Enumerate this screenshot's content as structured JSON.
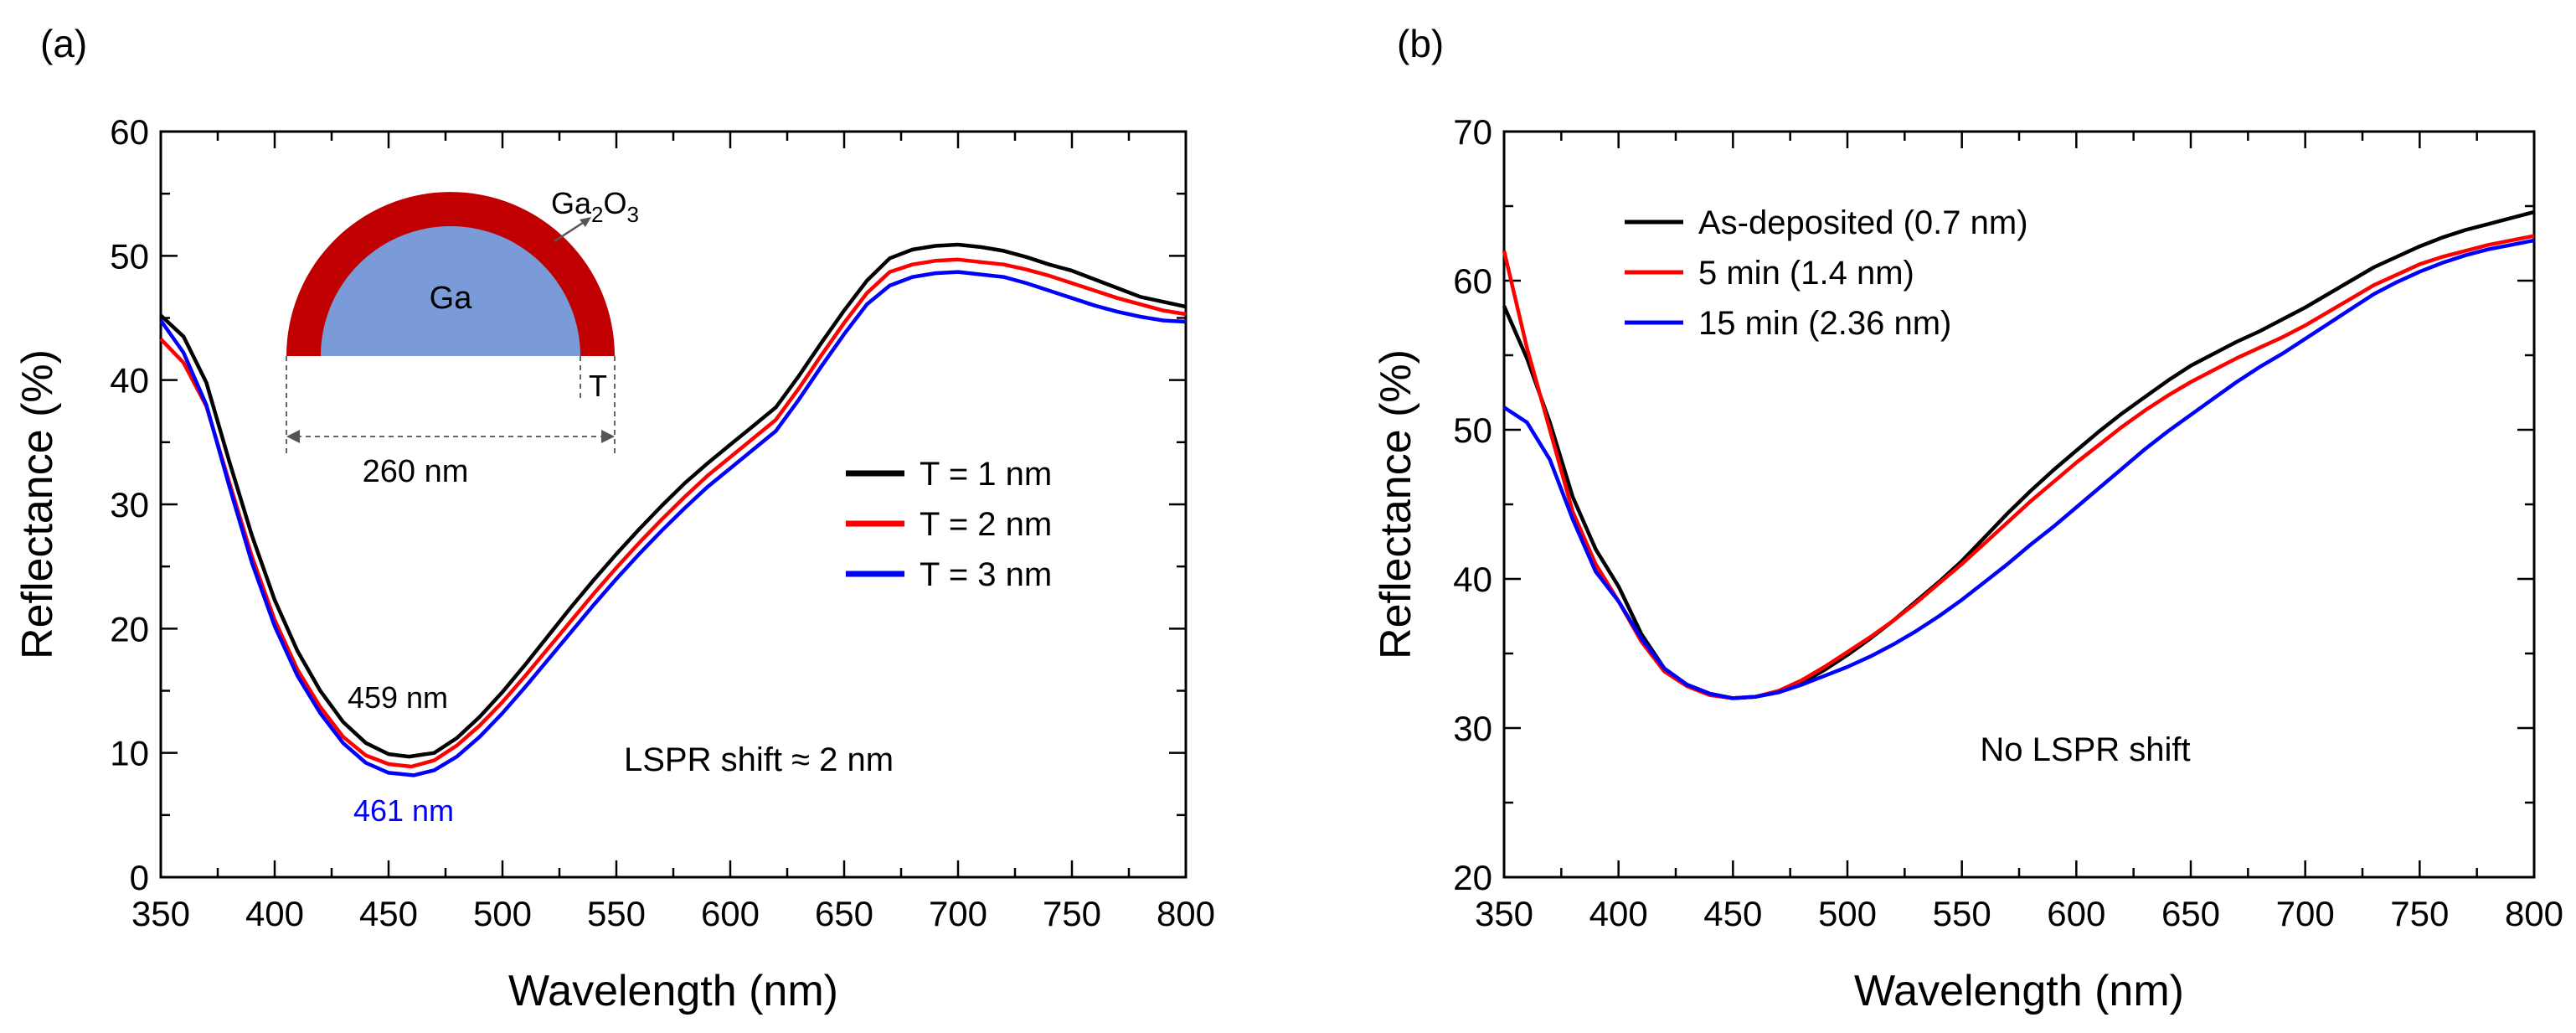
{
  "chart_data": [
    {
      "panel_label": "(a)",
      "type": "line",
      "xlabel": "Wavelength (nm)",
      "ylabel": "Reflectance (%)",
      "xlim": [
        350,
        800
      ],
      "ylim": [
        0,
        60
      ],
      "xticks": [
        "350",
        "400",
        "450",
        "500",
        "550",
        "600",
        "650",
        "700",
        "750",
        "800"
      ],
      "yticks": [
        "0",
        "10",
        "20",
        "30",
        "40",
        "50",
        "60"
      ],
      "legend_position": "center-right",
      "series": [
        {
          "name": "T = 1 nm",
          "color": "#000000",
          "x": [
            350,
            360,
            370,
            380,
            390,
            400,
            410,
            420,
            430,
            440,
            450,
            459,
            470,
            480,
            490,
            500,
            510,
            520,
            530,
            540,
            550,
            560,
            570,
            580,
            590,
            600,
            610,
            620,
            630,
            640,
            650,
            660,
            670,
            680,
            690,
            700,
            710,
            720,
            730,
            740,
            750,
            760,
            770,
            780,
            790,
            800
          ],
          "y": [
            45.2,
            43.5,
            39.8,
            33.5,
            27.5,
            22.3,
            18.2,
            15.0,
            12.5,
            10.8,
            9.9,
            9.7,
            10.0,
            11.2,
            12.9,
            14.9,
            17.1,
            19.4,
            21.7,
            23.9,
            26.0,
            28.0,
            29.9,
            31.7,
            33.3,
            34.8,
            36.3,
            37.8,
            40.3,
            43.0,
            45.6,
            48.0,
            49.8,
            50.5,
            50.8,
            50.9,
            50.7,
            50.4,
            49.9,
            49.3,
            48.8,
            48.1,
            47.4,
            46.7,
            46.3,
            45.9
          ]
        },
        {
          "name": "T = 2 nm",
          "color": "#ff0000",
          "x": [
            350,
            360,
            370,
            380,
            390,
            400,
            410,
            420,
            430,
            440,
            450,
            460,
            470,
            480,
            490,
            500,
            510,
            520,
            530,
            540,
            550,
            560,
            570,
            580,
            590,
            600,
            610,
            620,
            630,
            640,
            650,
            660,
            670,
            680,
            690,
            700,
            710,
            720,
            730,
            740,
            750,
            760,
            770,
            780,
            790,
            800
          ],
          "y": [
            43.3,
            41.4,
            37.9,
            31.8,
            25.8,
            20.7,
            16.7,
            13.7,
            11.3,
            9.8,
            9.1,
            8.9,
            9.4,
            10.6,
            12.2,
            14.1,
            16.2,
            18.4,
            20.6,
            22.8,
            24.9,
            26.9,
            28.8,
            30.6,
            32.3,
            33.8,
            35.3,
            36.8,
            39.3,
            42.0,
            44.6,
            47.0,
            48.7,
            49.3,
            49.6,
            49.7,
            49.5,
            49.3,
            48.9,
            48.4,
            47.8,
            47.2,
            46.6,
            46.1,
            45.6,
            45.3
          ]
        },
        {
          "name": "T = 3 nm",
          "color": "#0000ff",
          "x": [
            350,
            360,
            370,
            380,
            390,
            400,
            410,
            420,
            430,
            440,
            450,
            461,
            470,
            480,
            490,
            500,
            510,
            520,
            530,
            540,
            550,
            560,
            570,
            580,
            590,
            600,
            610,
            620,
            630,
            640,
            650,
            660,
            670,
            680,
            690,
            700,
            710,
            720,
            730,
            740,
            750,
            760,
            770,
            780,
            790,
            800
          ],
          "y": [
            44.8,
            42.2,
            38.0,
            31.5,
            25.3,
            20.2,
            16.2,
            13.2,
            10.8,
            9.2,
            8.4,
            8.2,
            8.6,
            9.7,
            11.3,
            13.2,
            15.3,
            17.5,
            19.7,
            21.9,
            24.0,
            26.0,
            27.9,
            29.7,
            31.4,
            32.9,
            34.4,
            35.9,
            38.4,
            41.1,
            43.7,
            46.1,
            47.6,
            48.3,
            48.6,
            48.7,
            48.5,
            48.3,
            47.8,
            47.2,
            46.6,
            46.0,
            45.5,
            45.1,
            44.8,
            44.7
          ]
        }
      ],
      "annotations": {
        "peak_black": "459 nm",
        "peak_blue": "461 nm",
        "shift_text": "LSPR shift ≈ 2 nm",
        "inset_shell_label": "Ga",
        "inset_shell_sub": "2",
        "inset_shell_label2": "O",
        "inset_shell_sub2": "3",
        "inset_core_label": "Ga",
        "inset_thickness_label": "T",
        "inset_diameter_label": "260 nm",
        "inset_shell_color": "#c00000",
        "inset_core_color": "#7a9bd8"
      }
    },
    {
      "panel_label": "(b)",
      "type": "line",
      "xlabel": "Wavelength (nm)",
      "ylabel": "Reflectance (%)",
      "xlim": [
        350,
        800
      ],
      "ylim": [
        20,
        70
      ],
      "xticks": [
        "350",
        "400",
        "450",
        "500",
        "550",
        "600",
        "650",
        "700",
        "750",
        "800"
      ],
      "yticks": [
        "20",
        "30",
        "40",
        "50",
        "60",
        "70"
      ],
      "legend_position": "top-left",
      "series": [
        {
          "name": "As-deposited (0.7 nm)",
          "color": "#000000",
          "x": [
            350,
            360,
            370,
            380,
            390,
            400,
            410,
            420,
            430,
            440,
            450,
            460,
            470,
            480,
            490,
            500,
            510,
            520,
            530,
            540,
            550,
            560,
            570,
            580,
            590,
            600,
            610,
            620,
            630,
            640,
            650,
            660,
            670,
            680,
            690,
            700,
            710,
            720,
            730,
            740,
            750,
            760,
            770,
            780,
            790,
            800
          ],
          "y": [
            58.3,
            54.8,
            50.5,
            45.5,
            42.0,
            39.5,
            36.3,
            34.0,
            32.9,
            32.3,
            32.0,
            32.1,
            32.4,
            33.0,
            33.9,
            34.9,
            36.0,
            37.2,
            38.5,
            39.8,
            41.2,
            42.8,
            44.4,
            45.9,
            47.3,
            48.6,
            49.9,
            51.1,
            52.2,
            53.3,
            54.3,
            55.1,
            55.9,
            56.6,
            57.4,
            58.2,
            59.1,
            60.0,
            60.9,
            61.6,
            62.3,
            62.9,
            63.4,
            63.8,
            64.2,
            64.6
          ]
        },
        {
          "name": "5 min (1.4 nm)",
          "color": "#ff0000",
          "x": [
            350,
            360,
            370,
            380,
            390,
            400,
            410,
            420,
            430,
            440,
            450,
            460,
            470,
            480,
            490,
            500,
            510,
            520,
            530,
            540,
            550,
            560,
            570,
            580,
            590,
            600,
            610,
            620,
            630,
            640,
            650,
            660,
            670,
            680,
            690,
            700,
            710,
            720,
            730,
            740,
            750,
            760,
            770,
            780,
            790,
            800
          ],
          "y": [
            62.0,
            55.5,
            50.0,
            44.5,
            41.0,
            38.5,
            35.8,
            33.8,
            32.8,
            32.2,
            32.0,
            32.1,
            32.5,
            33.2,
            34.1,
            35.1,
            36.1,
            37.2,
            38.4,
            39.7,
            41.0,
            42.4,
            43.8,
            45.2,
            46.5,
            47.8,
            49.0,
            50.2,
            51.3,
            52.3,
            53.2,
            54.0,
            54.8,
            55.5,
            56.2,
            57.0,
            57.9,
            58.8,
            59.7,
            60.4,
            61.1,
            61.6,
            62.0,
            62.4,
            62.7,
            63.0
          ]
        },
        {
          "name": "15 min (2.36 nm)",
          "color": "#0000ff",
          "x": [
            350,
            360,
            370,
            380,
            390,
            400,
            410,
            420,
            430,
            440,
            450,
            460,
            470,
            480,
            490,
            500,
            510,
            520,
            530,
            540,
            550,
            560,
            570,
            580,
            590,
            600,
            610,
            620,
            630,
            640,
            650,
            660,
            670,
            680,
            690,
            700,
            710,
            720,
            730,
            740,
            750,
            760,
            770,
            780,
            790,
            800
          ],
          "y": [
            51.5,
            50.5,
            48.0,
            44.0,
            40.5,
            38.5,
            36.0,
            34.0,
            32.9,
            32.3,
            32.0,
            32.1,
            32.4,
            32.9,
            33.5,
            34.1,
            34.8,
            35.6,
            36.5,
            37.5,
            38.6,
            39.8,
            41.0,
            42.3,
            43.5,
            44.8,
            46.1,
            47.4,
            48.7,
            49.9,
            51.0,
            52.1,
            53.2,
            54.2,
            55.1,
            56.1,
            57.1,
            58.1,
            59.1,
            59.9,
            60.6,
            61.2,
            61.7,
            62.1,
            62.4,
            62.7
          ]
        }
      ],
      "annotations": {
        "shift_text": "No LSPR shift"
      }
    }
  ]
}
